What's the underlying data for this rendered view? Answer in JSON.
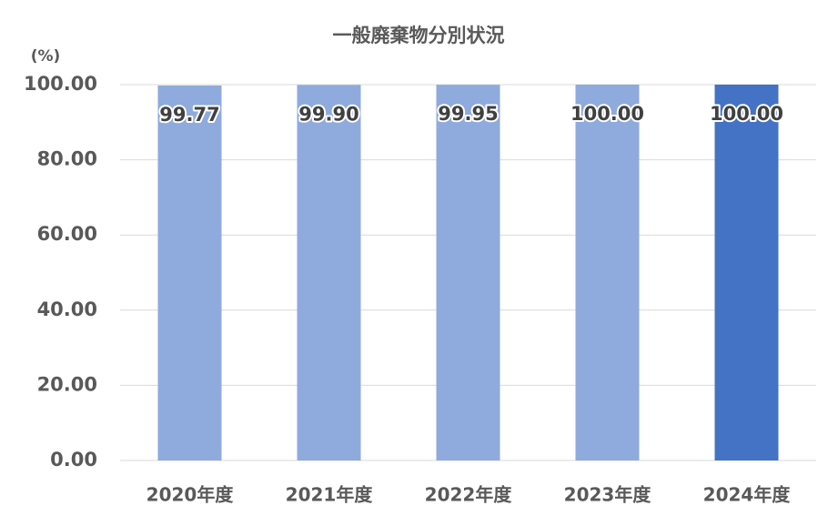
{
  "chart_data": {
    "type": "bar",
    "title": "一般廃棄物分別状況",
    "y_label": "(%)",
    "categories": [
      "2020年度",
      "2021年度",
      "2022年度",
      "2023年度",
      "2024年度"
    ],
    "values": [
      99.77,
      99.9,
      99.95,
      100,
      100
    ],
    "value_labels": [
      "99.77",
      "99.90",
      "99.95",
      "100.00",
      "100.00"
    ],
    "colors": [
      "#8faadc",
      "#8faadc",
      "#8faadc",
      "#8faadc",
      "#4472c4"
    ],
    "ylim": [
      0,
      100
    ],
    "yticks": [
      {
        "value": 0,
        "label": "0.00"
      },
      {
        "value": 20,
        "label": "20.00"
      },
      {
        "value": 40,
        "label": "40.00"
      },
      {
        "value": 60,
        "label": "60.00"
      },
      {
        "value": 80,
        "label": "80.00"
      },
      {
        "value": 100,
        "label": "100.00"
      }
    ],
    "grid": true
  }
}
